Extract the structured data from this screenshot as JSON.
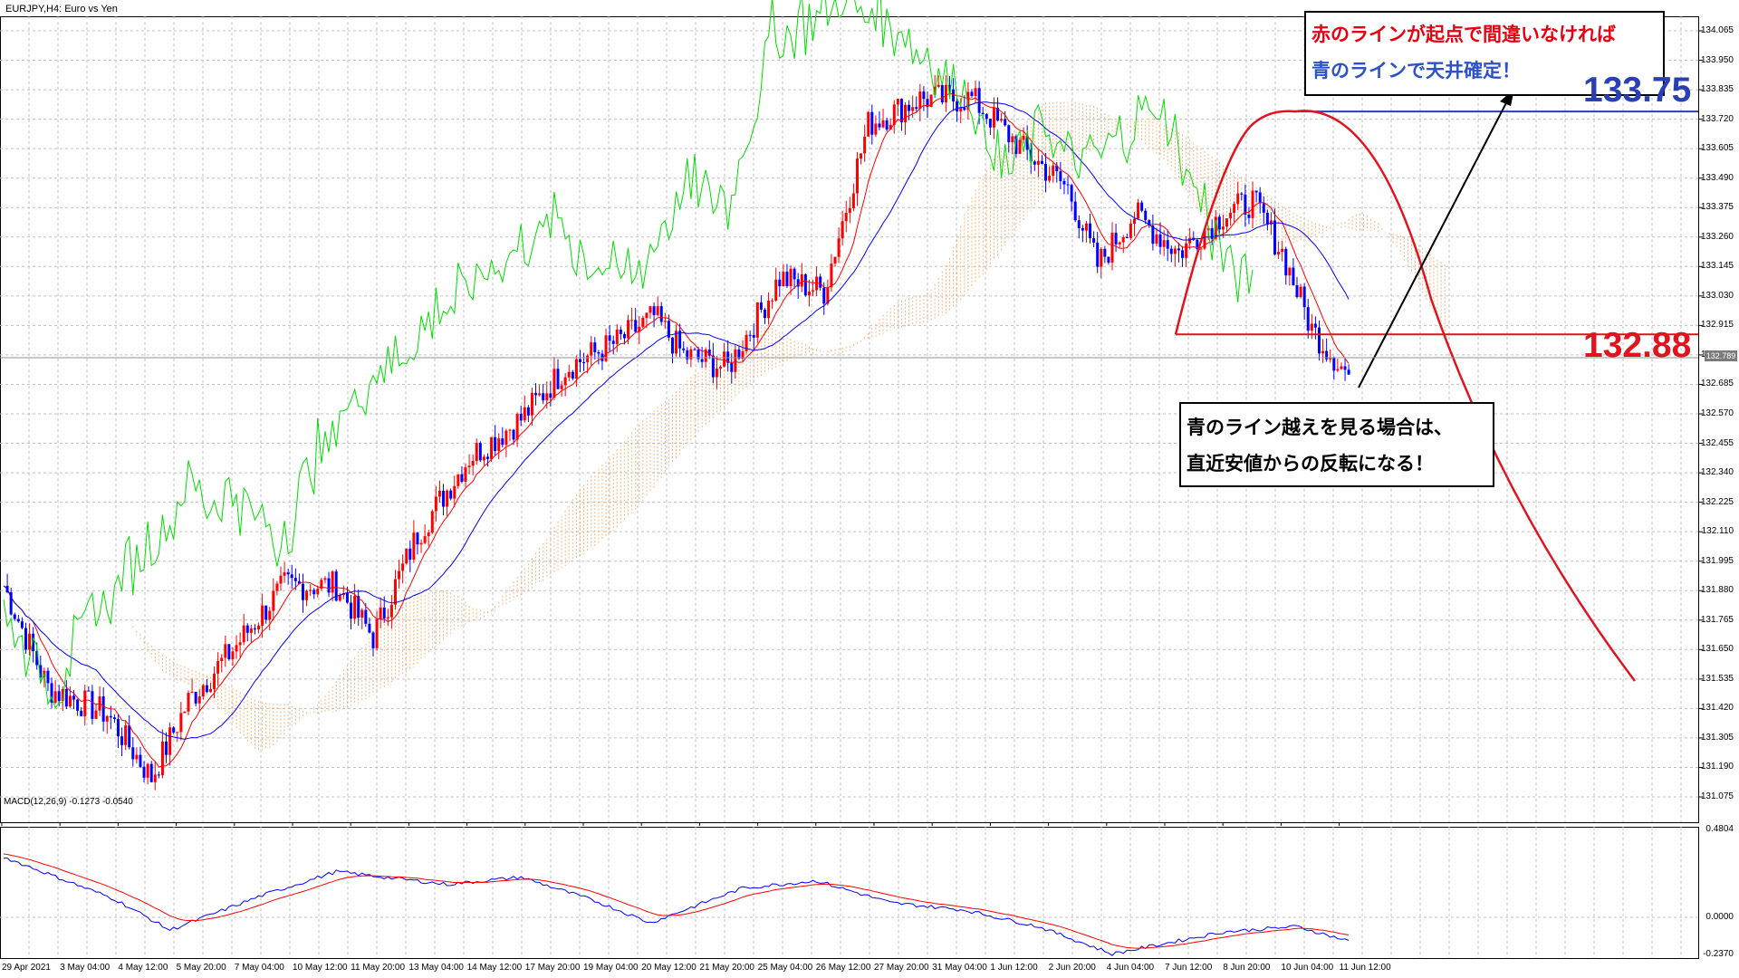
{
  "header": {
    "symbol": "EURJPY,H4:  Euro vs Yen",
    "macd": "MACD(12,26,9) -0.1273 -0.0540"
  },
  "y_axis": [
    "134.065",
    "133.950",
    "133.835",
    "133.720",
    "133.605",
    "133.490",
    "133.375",
    "133.260",
    "133.145",
    "133.030",
    "132.915",
    "132.800",
    "132.685",
    "132.570",
    "132.455",
    "132.340",
    "132.225",
    "132.110",
    "131.995",
    "131.880",
    "131.765",
    "131.650",
    "131.535",
    "131.420",
    "131.305",
    "131.190",
    "131.075"
  ],
  "macd_axis": [
    "0.4804",
    "0.0000",
    "-0.2370"
  ],
  "current_price": "132.789",
  "x_axis": [
    "29 Apr 2021",
    "3 May 04:00",
    "4 May 12:00",
    "5 May 20:00",
    "7 May 04:00",
    "10 May 12:00",
    "11 May 20:00",
    "13 May 04:00",
    "14 May 12:00",
    "17 May 20:00",
    "19 May 04:00",
    "20 May 12:00",
    "21 May 20:00",
    "25 May 04:00",
    "26 May 12:00",
    "27 May 20:00",
    "31 May 04:00",
    "1 Jun 12:00",
    "2 Jun 20:00",
    "4 Jun 04:00",
    "7 Jun 12:00",
    "8 Jun 20:00",
    "10 Jun 04:00",
    "11 Jun 12:00"
  ],
  "annotations": {
    "top_box_line1": "赤のラインが起点で間違いなければ",
    "top_box_line2": "青のラインで天井確定！",
    "bottom_box_line1": "青のライン越えを見る場合は、",
    "bottom_box_line2": "直近安値からの反転になる！",
    "level_high": "133.75",
    "level_low": "132.88"
  },
  "colors": {
    "bull": "#ff0000",
    "bear": "#0000ff",
    "tenkan": "#ff0000",
    "kijun": "#0000ff",
    "chikou": "#00dd00",
    "cloud": "#f4a460",
    "macd_main": "#0000ff",
    "macd_signal": "#ff0000",
    "grid": "#c0c0c0",
    "level_high": "#2b3fb5",
    "level_low": "#e0141e"
  }
}
